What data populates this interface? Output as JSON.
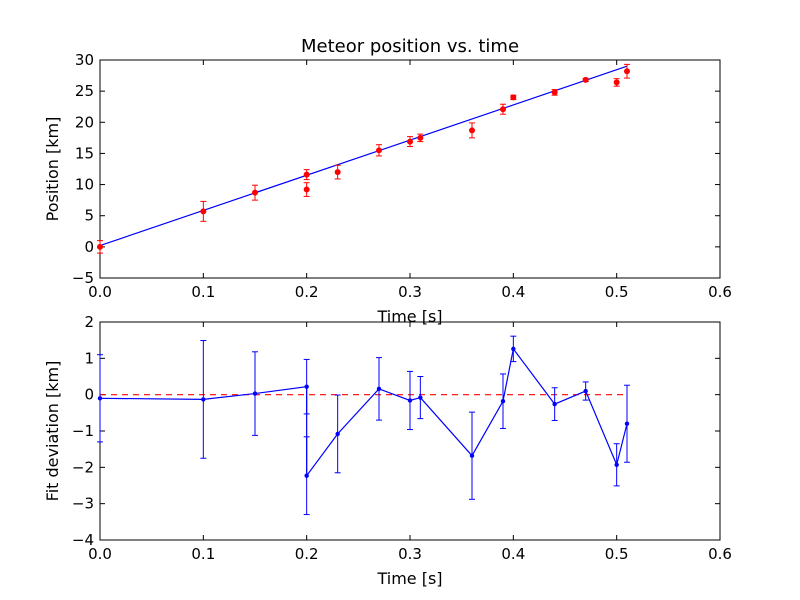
{
  "chart_data": [
    {
      "type": "scatter",
      "title": "Meteor position vs. time",
      "xlabel": "Time [s]",
      "ylabel": "Position [km]",
      "xlim": [
        0.0,
        0.6
      ],
      "ylim": [
        -5,
        30
      ],
      "xticks": [
        "0.0",
        "0.1",
        "0.2",
        "0.3",
        "0.4",
        "0.5",
        "0.6"
      ],
      "yticks": [
        "−5",
        "0",
        "5",
        "10",
        "15",
        "20",
        "25",
        "30"
      ],
      "grid": false,
      "colors": {
        "points": "#ff0000",
        "errorbars": "#ff0000",
        "fit": "#0000ff"
      },
      "fit_line": {
        "x": [
          0.0,
          0.51
        ],
        "y": [
          0.2,
          29.0
        ]
      },
      "points": [
        {
          "x": 0.0,
          "y": 0.0,
          "err": 1.0
        },
        {
          "x": 0.1,
          "y": 5.7,
          "err": 1.6
        },
        {
          "x": 0.15,
          "y": 8.7,
          "err": 1.2
        },
        {
          "x": 0.2,
          "y": 11.6,
          "err": 0.8
        },
        {
          "x": 0.2,
          "y": 9.2,
          "err": 1.1
        },
        {
          "x": 0.23,
          "y": 12.0,
          "err": 1.1
        },
        {
          "x": 0.27,
          "y": 15.5,
          "err": 0.9
        },
        {
          "x": 0.3,
          "y": 16.9,
          "err": 0.8
        },
        {
          "x": 0.31,
          "y": 17.5,
          "err": 0.6
        },
        {
          "x": 0.36,
          "y": 18.7,
          "err": 1.2
        },
        {
          "x": 0.39,
          "y": 22.1,
          "err": 0.8
        },
        {
          "x": 0.4,
          "y": 24.0,
          "err": 0.35
        },
        {
          "x": 0.44,
          "y": 24.8,
          "err": 0.45
        },
        {
          "x": 0.47,
          "y": 26.8,
          "err": 0.25
        },
        {
          "x": 0.5,
          "y": 26.4,
          "err": 0.6
        },
        {
          "x": 0.51,
          "y": 28.2,
          "err": 1.1
        }
      ]
    },
    {
      "type": "line",
      "title": "",
      "xlabel": "Time [s]",
      "ylabel": "Fit deviation [km]",
      "xlim": [
        0.0,
        0.6
      ],
      "ylim": [
        -4,
        2
      ],
      "xticks": [
        "0.0",
        "0.1",
        "0.2",
        "0.3",
        "0.4",
        "0.5",
        "0.6"
      ],
      "yticks": [
        "−4",
        "−3",
        "−2",
        "−1",
        "0",
        "1",
        "2"
      ],
      "grid": false,
      "colors": {
        "line": "#0000ff",
        "zero_line": "#ff0000"
      },
      "zero_line": {
        "x": [
          0.0,
          0.51
        ],
        "y": 0
      },
      "points": [
        {
          "x": 0.0,
          "y": -0.1,
          "err": 1.2
        },
        {
          "x": 0.1,
          "y": -0.13,
          "err": 1.62
        },
        {
          "x": 0.15,
          "y": 0.03,
          "err": 1.15
        },
        {
          "x": 0.2,
          "y": 0.22,
          "err": 0.75
        },
        {
          "x": 0.2,
          "y": -2.23,
          "err": 1.07
        },
        {
          "x": 0.23,
          "y": -1.08,
          "err": 1.07
        },
        {
          "x": 0.27,
          "y": 0.16,
          "err": 0.86
        },
        {
          "x": 0.3,
          "y": -0.16,
          "err": 0.8
        },
        {
          "x": 0.31,
          "y": -0.08,
          "err": 0.58
        },
        {
          "x": 0.36,
          "y": -1.68,
          "err": 1.2
        },
        {
          "x": 0.39,
          "y": -0.18,
          "err": 0.75
        },
        {
          "x": 0.4,
          "y": 1.26,
          "err": 0.35
        },
        {
          "x": 0.44,
          "y": -0.26,
          "err": 0.45
        },
        {
          "x": 0.47,
          "y": 0.1,
          "err": 0.25
        },
        {
          "x": 0.5,
          "y": -1.93,
          "err": 0.58
        },
        {
          "x": 0.51,
          "y": -0.8,
          "err": 1.06
        }
      ]
    }
  ]
}
